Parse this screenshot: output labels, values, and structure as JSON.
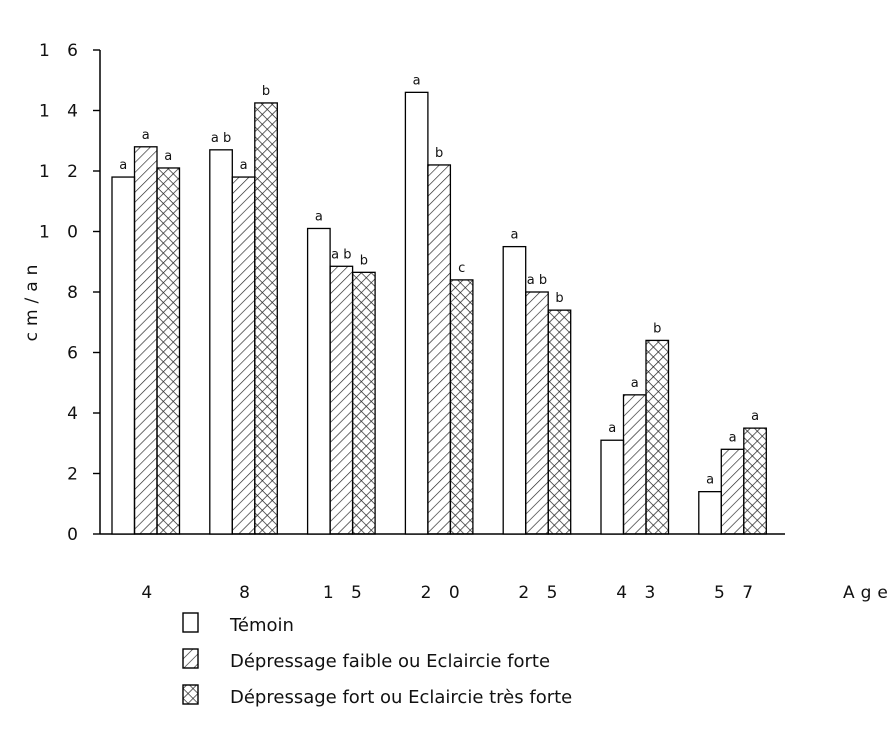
{
  "chart_data": {
    "type": "bar",
    "ylabel": "cm/an",
    "xlabel": "Age",
    "ylim": [
      0,
      16
    ],
    "yticks": [
      0,
      2,
      4,
      6,
      8,
      10,
      12,
      14,
      16
    ],
    "ytick_labels": [
      "0",
      "2",
      "4",
      "6",
      "8",
      "1 0",
      "1 2",
      "1 4",
      "1 6"
    ],
    "categories": [
      "4",
      "8",
      "15",
      "20",
      "25",
      "43",
      "57"
    ],
    "category_labels": [
      "4",
      "8",
      "1 5",
      "2 0",
      "2 5",
      "4 3",
      "5 7"
    ],
    "series": [
      {
        "name": "Témoin",
        "pattern": "none",
        "values": [
          11.8,
          12.7,
          10.1,
          14.6,
          9.5,
          3.1,
          1.4
        ],
        "letters": [
          "a",
          "a b",
          "a",
          "a",
          "a",
          "a",
          "a"
        ]
      },
      {
        "name": "Dépressage faible ou Eclaircie forte",
        "pattern": "hatch",
        "values": [
          12.8,
          11.8,
          8.85,
          12.2,
          8.0,
          4.6,
          2.8
        ],
        "letters": [
          "a",
          "a",
          "a b",
          "b",
          "a b",
          "a",
          "a"
        ]
      },
      {
        "name": "Dépressage fort ou Eclaircie très forte",
        "pattern": "crosshatch",
        "values": [
          12.1,
          14.25,
          8.65,
          8.4,
          7.4,
          6.4,
          3.5
        ],
        "letters": [
          "a",
          "b",
          "b",
          "c",
          "b",
          "b",
          "a"
        ]
      }
    ],
    "grid": false,
    "legend_position": "bottom-left"
  }
}
